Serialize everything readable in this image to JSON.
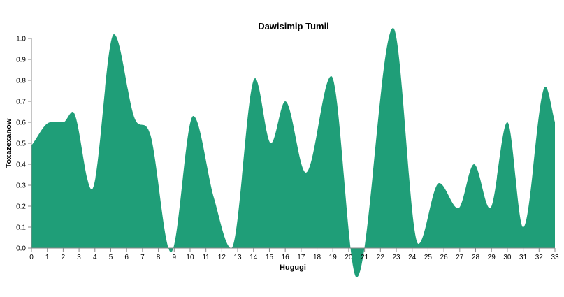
{
  "chart_data": {
    "type": "area",
    "title": "Dawisimip Tumil",
    "xlabel": "Hugugi",
    "ylabel": "Toxazexanow",
    "xlim": [
      0,
      33
    ],
    "ylim": [
      0,
      1.0
    ],
    "x_ticks": [
      "0",
      "1",
      "2",
      "3",
      "4",
      "5",
      "6",
      "7",
      "8",
      "9",
      "10",
      "11",
      "12",
      "13",
      "14",
      "15",
      "16",
      "17",
      "18",
      "19",
      "20",
      "21",
      "22",
      "23",
      "24",
      "25",
      "26",
      "27",
      "28",
      "29",
      "30",
      "31",
      "32",
      "33"
    ],
    "y_ticks": [
      "0.0",
      "0.1",
      "0.2",
      "0.3",
      "0.4",
      "0.5",
      "0.6",
      "0.7",
      "0.8",
      "0.9",
      "1.0"
    ],
    "grid": false,
    "color": "#1f9e78",
    "series": [
      {
        "x": [
          0,
          1.2,
          2,
          2.6,
          3.8,
          5.2,
          6.5,
          7.5,
          8.8,
          10.2,
          11.5,
          12.6,
          14.1,
          15.1,
          16.0,
          17.3,
          18.9,
          20.5,
          22.8,
          24.4,
          25.7,
          26.9,
          27.9,
          28.9,
          30.0,
          31.0,
          32.4,
          33
        ],
        "y": [
          0.49,
          0.6,
          0.6,
          0.65,
          0.28,
          1.02,
          0.62,
          0.54,
          -0.02,
          0.63,
          0.24,
          0.0,
          0.81,
          0.5,
          0.7,
          0.36,
          0.82,
          -0.14,
          1.05,
          0.02,
          0.31,
          0.19,
          0.4,
          0.19,
          0.6,
          0.1,
          0.77,
          0.6
        ]
      }
    ]
  }
}
